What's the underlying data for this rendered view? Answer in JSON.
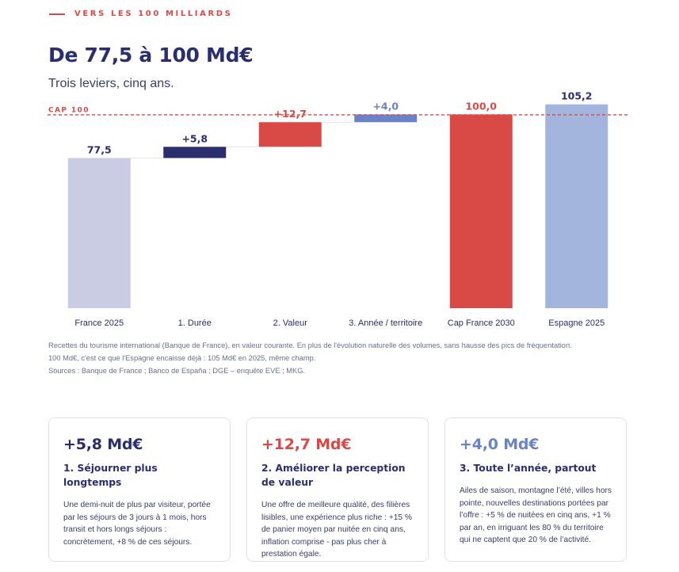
{
  "header": {
    "eyebrow": "VERS LES 100 MILLIARDS",
    "title": "De 77,5 à 100 Md€",
    "subtitle": "Trois leviers, cinq ans."
  },
  "chart_data": {
    "type": "bar",
    "subtype": "waterfall",
    "categories": [
      "France 2025",
      "1. Durée",
      "2. Valeur",
      "3. Année / territoire",
      "Cap France 2030",
      "Espagne 2025"
    ],
    "values": [
      77.5,
      5.8,
      12.7,
      4.0,
      100.0,
      105.2
    ],
    "bar_kind": [
      "total",
      "delta",
      "delta",
      "delta",
      "total",
      "total"
    ],
    "data_labels": [
      "77,5",
      "+5,8",
      "+12,7",
      "+4,0",
      "100,0",
      "105,2"
    ],
    "colors": [
      "#c9cce3",
      "#2a2d6e",
      "#d94a46",
      "#6a82c8",
      "#d94a46",
      "#a3b5dc"
    ],
    "label_colors": [
      "#2a2d6e",
      "#2a2d6e",
      "#d94a46",
      "#6a82c8",
      "#d94a46",
      "#2a2d6e"
    ],
    "reference_line": {
      "value": 100,
      "label": "CAP 100",
      "color": "#d94a46"
    },
    "ylim": [
      0,
      110
    ],
    "grid": false,
    "legend": "none"
  },
  "notes": [
    "Recettes du tourisme international (Banque de France), en valeur courante. En plus de l'évolution naturelle des volumes, sans hausse des pics de fréquentation.",
    "100 Md€, c'est ce que l'Espagne encaisse déjà : 105 Md€ en 2025, même champ.",
    "Sources : Banque de France ; Banco de España ; DGE – enquête EVE ; MKG."
  ],
  "cards": [
    {
      "value": "+5,8 Md€",
      "color": "#2a2d6e",
      "heading": "1. Séjourner plus longtemps",
      "body": "Une demi-nuit de plus par visiteur, portée par les séjours de 3 jours à 1 mois, hors transit et hors longs séjours : concrètement, +8 % de ces séjours."
    },
    {
      "value": "+12,7 Md€",
      "color": "#d94a46",
      "heading": "2. Améliorer la perception de valeur",
      "body": "Une offre de meilleure qualité, des filières lisibles, une expérience plus riche : +15 % de panier moyen par nuitée en cinq ans, inflation comprise - pas plus cher à prestation égale."
    },
    {
      "value": "+4,0 Md€",
      "color": "#6a82c8",
      "heading": "3. Toute l’année, partout",
      "body": "Ailes de saison, montagne l’été, villes hors pointe, nouvelles destinations portées par l’offre : +5 % de nuitées en cinq ans, +1 % par an, en irriguant les 80 % du territoire qui ne captent que 20 % de l’activité."
    }
  ]
}
